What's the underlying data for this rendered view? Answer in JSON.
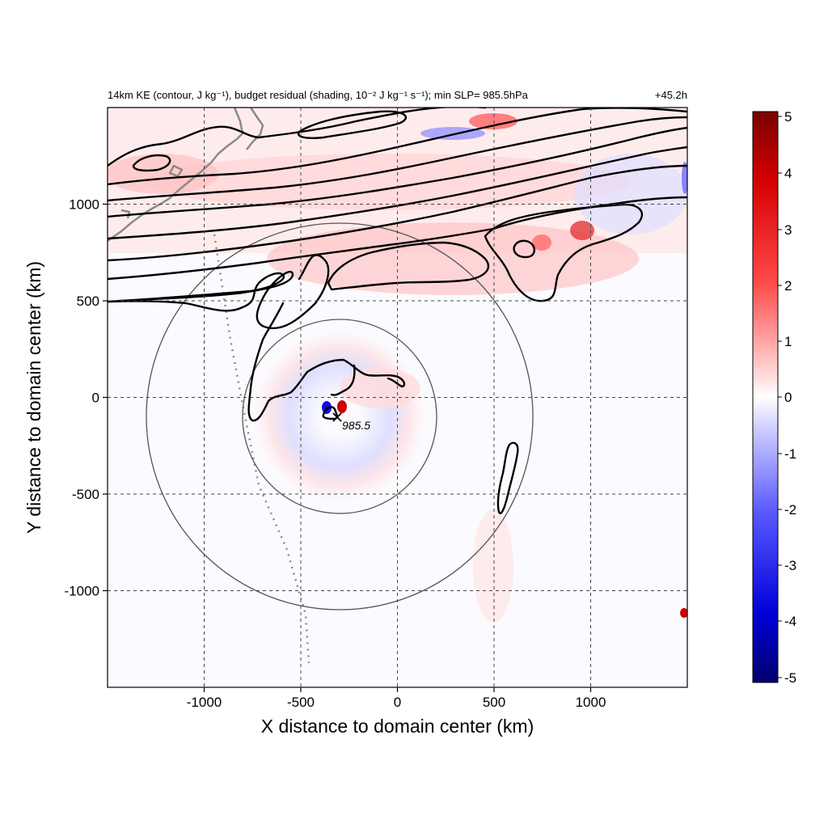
{
  "chart_data": {
    "type": "heatmap",
    "title": "14km KE (contour, J kg⁻¹), budget residual (shading, 10⁻² J kg⁻¹ s⁻¹); min SLP= 985.5hPa",
    "time_label": "+45.2h",
    "xlabel": "X distance to domain center (km)",
    "ylabel": "Y distance to domain center (km)",
    "xlim": [
      -1500,
      1500
    ],
    "ylim": [
      -1500,
      1500
    ],
    "xticks": [
      -1000,
      -500,
      0,
      500,
      1000
    ],
    "yticks": [
      -1000,
      -500,
      0,
      500,
      1000
    ],
    "xtick_labels": [
      "-1000",
      "-500",
      "0",
      "500",
      "1000"
    ],
    "ytick_labels": [
      "-1000",
      "-500",
      "0",
      "500",
      "1000"
    ],
    "grid": "dashed",
    "colorbar": {
      "ticks": [
        5,
        4,
        3,
        2,
        1,
        0,
        -1,
        -2,
        -3,
        -4,
        -5
      ],
      "labels": [
        "5",
        "4",
        "3",
        "2",
        "1",
        "0",
        "-1",
        "-2",
        "-3",
        "-4",
        "-5"
      ],
      "range": [
        -5,
        5
      ],
      "placement": "right"
    },
    "min_slp": {
      "x": -310,
      "y": -100,
      "label": "985.5"
    },
    "range_circles": [
      {
        "cx": -300,
        "cy": -100,
        "r": 500
      },
      {
        "cx": -300,
        "cy": -100,
        "r": 1000
      }
    ],
    "colors": {
      "positive": "#e00000",
      "negative": "#0000d0",
      "contour": "#000000",
      "coast": "#888888",
      "circle": "#555555"
    }
  }
}
